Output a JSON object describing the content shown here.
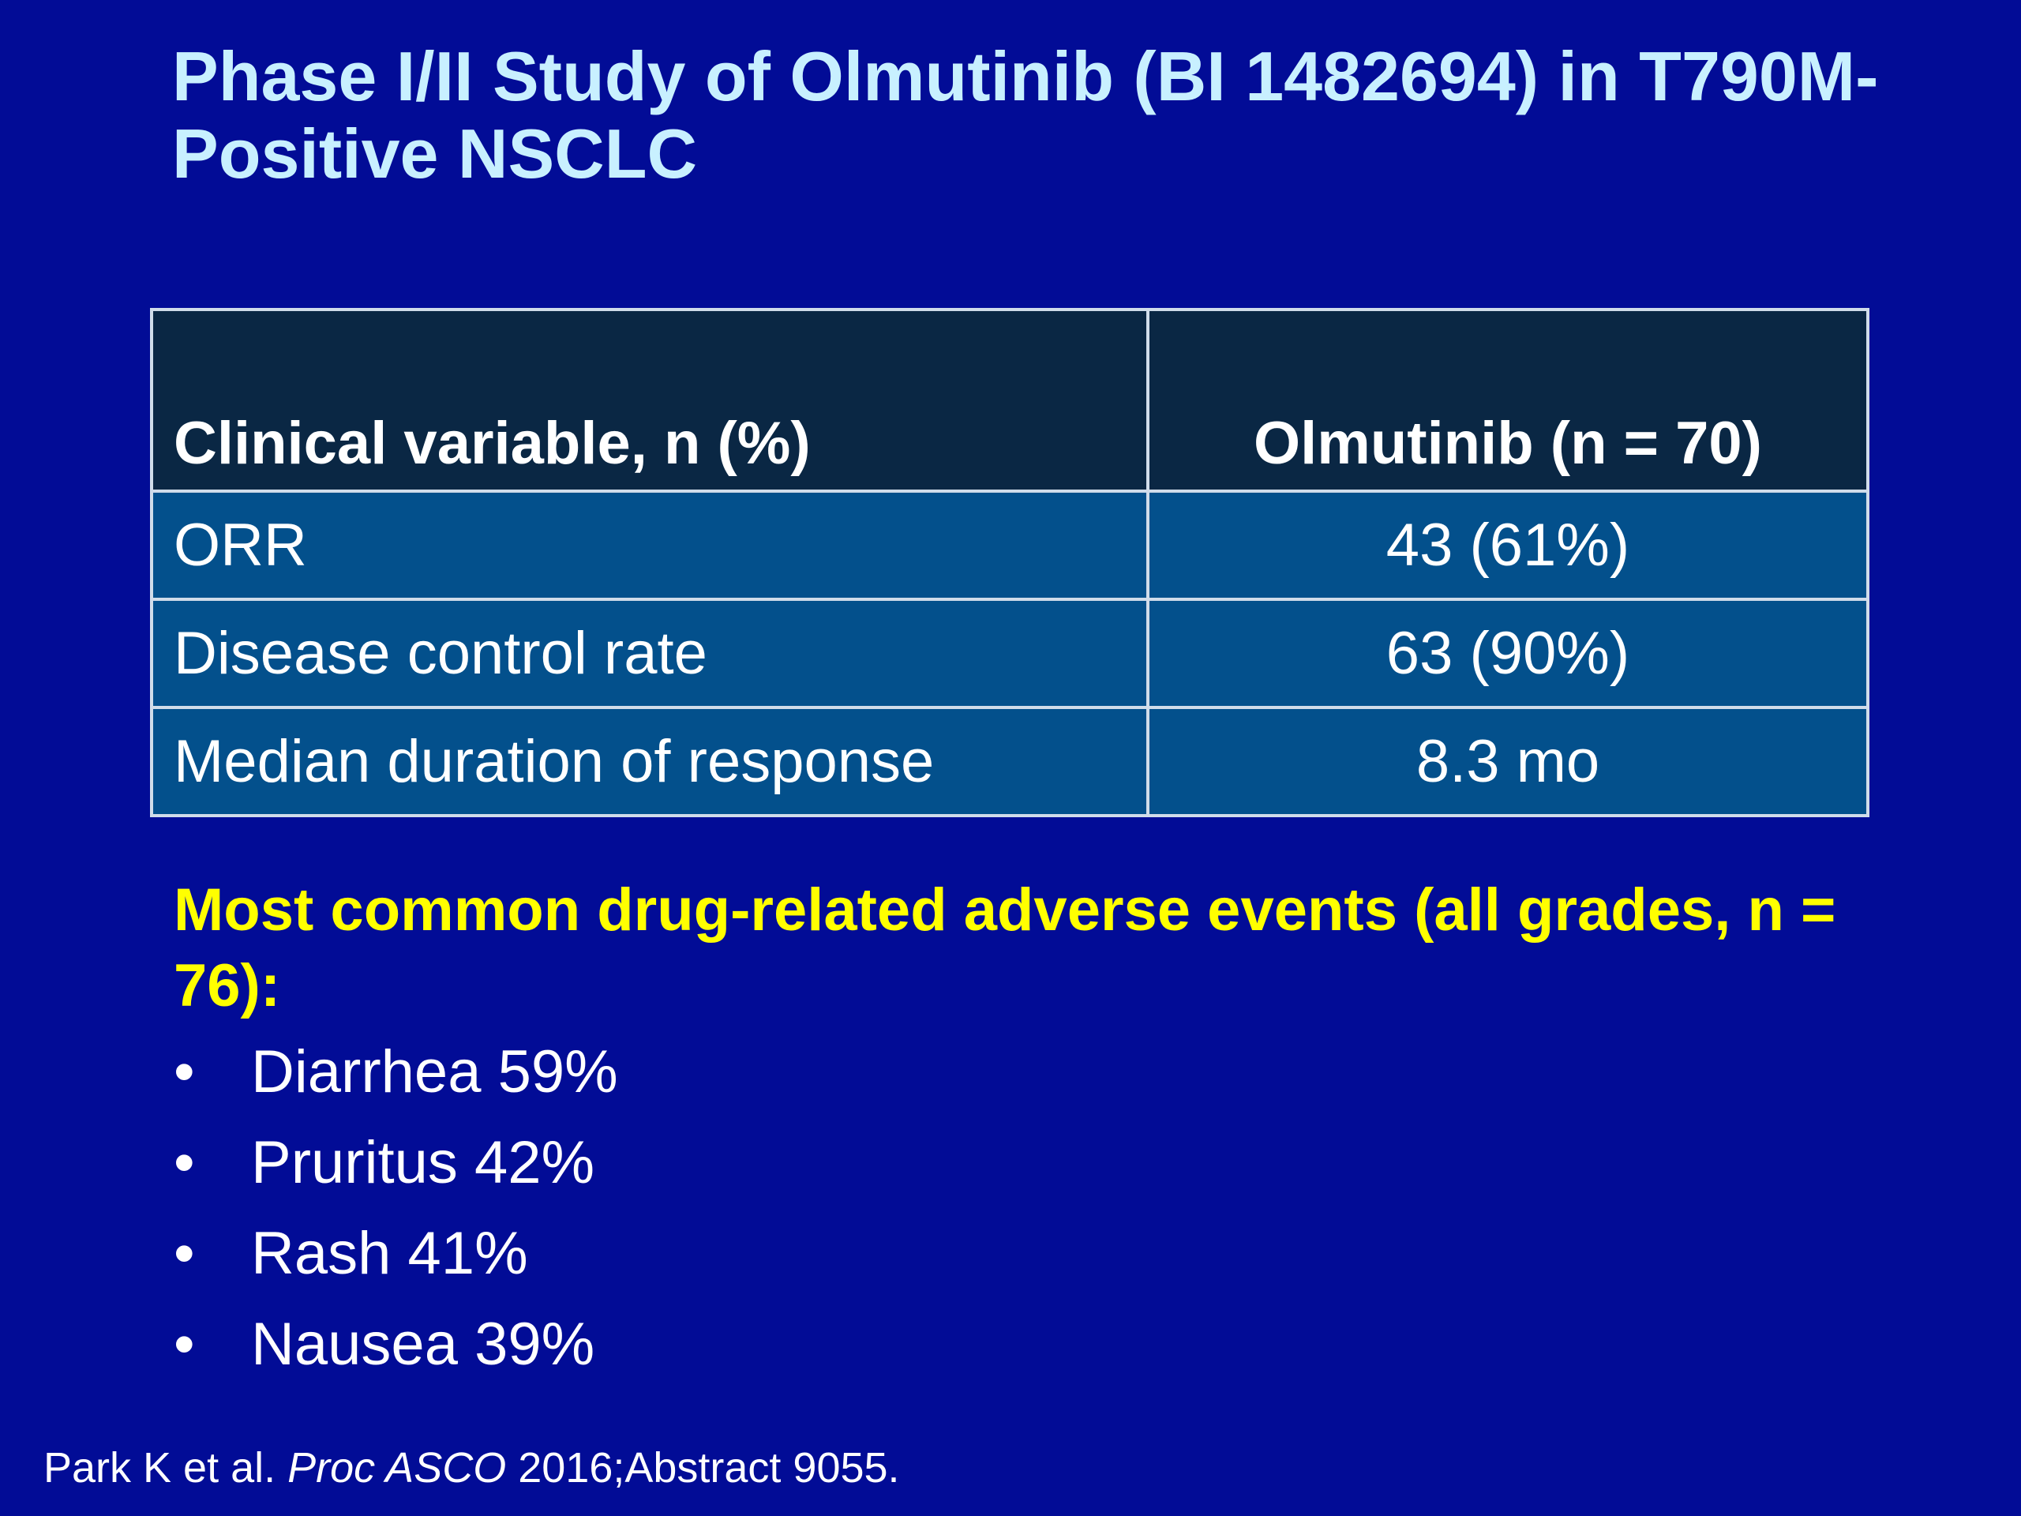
{
  "title": "Phase I/II Study of Olmutinib (BI 1482694) in T790M-Positive NSCLC",
  "table": {
    "headers": [
      "Clinical variable, n (%)",
      "Olmutinib (n = 70)"
    ],
    "rows": [
      {
        "variable": "ORR",
        "value": "43 (61%)"
      },
      {
        "variable": "Disease control rate",
        "value": "63 (90%)"
      },
      {
        "variable": "Median duration of response",
        "value": "8.3 mo"
      }
    ]
  },
  "adverse_events": {
    "heading": "Most common drug-related adverse events (all grades, n = 76):",
    "bullet": "•",
    "items": [
      "Diarrhea 59%",
      "Pruritus 42%",
      "Rash 41%",
      "Nausea 39%"
    ]
  },
  "citation": {
    "authors": "Park K et al. ",
    "journal": "Proc ASCO",
    "details": " 2016;Abstract 9055."
  },
  "colors": {
    "background": "#020c96",
    "title": "#c8f0ff",
    "header_fill": "#0a2744",
    "row_fill": "#03508c",
    "highlight": "#ffff00"
  }
}
